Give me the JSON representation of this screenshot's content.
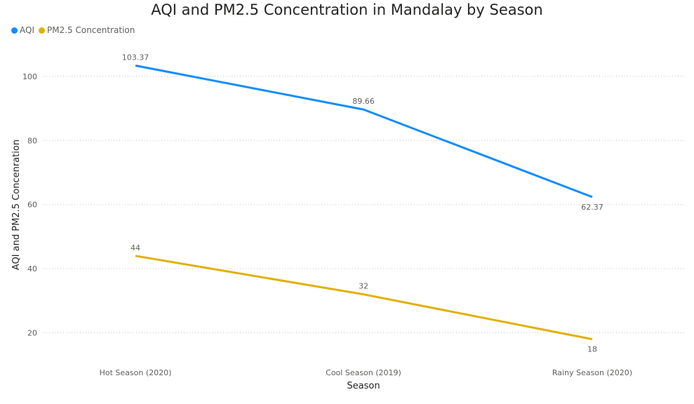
{
  "chart_data": {
    "type": "line",
    "title": "AQI and PM2.5 Concentration in Mandalay by Season",
    "xlabel": "Season",
    "ylabel": "AQI and PM2.5 Concenration",
    "categories": [
      "Hot Season (2020)",
      "Cool Season (2019)",
      "Rainy Season (2020)"
    ],
    "series": [
      {
        "name": "AQI",
        "color": "#118DFF",
        "values": [
          103.37,
          89.66,
          62.37
        ],
        "labels": [
          "103.37",
          "89.66",
          "62.37"
        ]
      },
      {
        "name": "PM2.5 Concentration",
        "color": "#E1B000",
        "values": [
          44,
          32,
          18
        ],
        "labels": [
          "44",
          "32",
          "18"
        ]
      }
    ],
    "y_ticks": [
      20,
      40,
      60,
      80,
      100
    ],
    "ylim": [
      10,
      110
    ],
    "grid": true,
    "legend_position": "top-left"
  }
}
